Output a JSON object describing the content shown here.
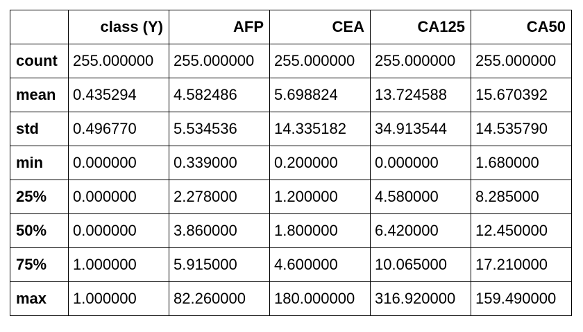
{
  "table": {
    "corner": "",
    "columns": [
      "class (Y)",
      "AFP",
      "CEA",
      "CA125",
      "CA50"
    ],
    "rows": [
      {
        "label": "count",
        "cells": [
          "255.000000",
          "255.000000",
          "255.000000",
          "255.000000",
          "255.000000"
        ]
      },
      {
        "label": "mean",
        "cells": [
          "0.435294",
          "4.582486",
          "5.698824",
          "13.724588",
          "15.670392"
        ]
      },
      {
        "label": "std",
        "cells": [
          "0.496770",
          "5.534536",
          "14.335182",
          "34.913544",
          "14.535790"
        ]
      },
      {
        "label": "min",
        "cells": [
          "0.000000",
          "0.339000",
          "0.200000",
          "0.000000",
          "1.680000"
        ]
      },
      {
        "label": "25%",
        "cells": [
          "0.000000",
          "2.278000",
          "1.200000",
          "4.580000",
          "8.285000"
        ]
      },
      {
        "label": "50%",
        "cells": [
          "0.000000",
          "3.860000",
          "1.800000",
          "6.420000",
          "12.450000"
        ]
      },
      {
        "label": "75%",
        "cells": [
          "1.000000",
          "5.915000",
          "4.600000",
          "10.065000",
          "17.210000"
        ]
      },
      {
        "label": "max",
        "cells": [
          "1.000000",
          "82.260000",
          "180.000000",
          "316.920000",
          "159.490000"
        ]
      }
    ]
  }
}
